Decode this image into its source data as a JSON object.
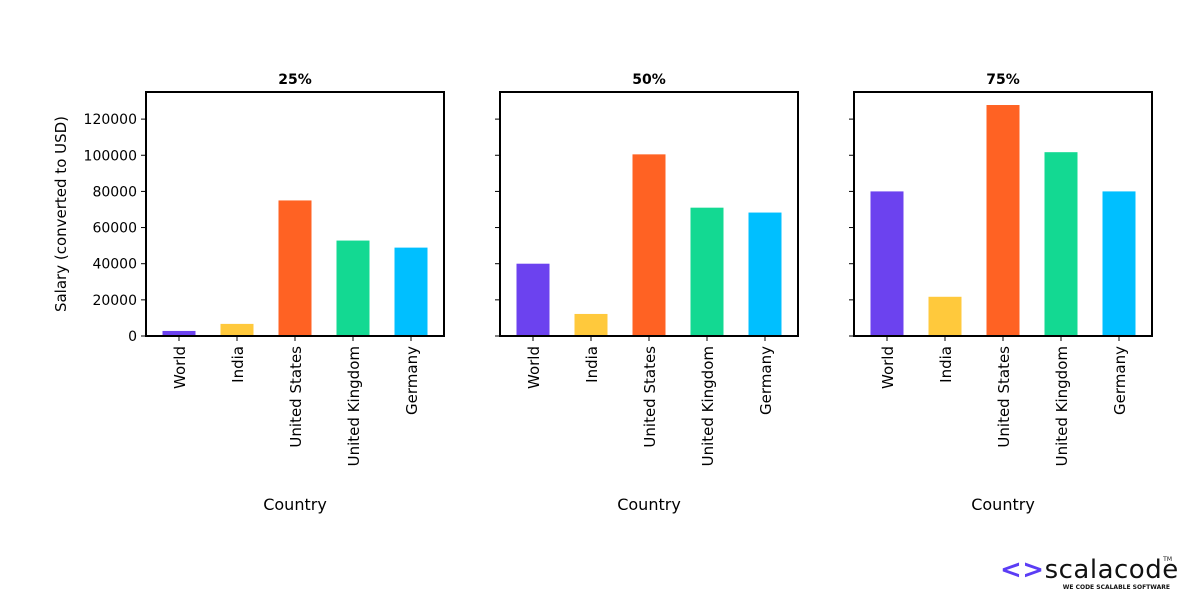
{
  "chart_data": [
    {
      "type": "bar",
      "title": "25%",
      "xlabel": "Country",
      "ylabel": "Salary (converted to USD)",
      "categories": [
        "World",
        "India",
        "United States",
        "United Kingdom",
        "Germany"
      ],
      "values": [
        2800,
        6700,
        75000,
        52800,
        48900
      ],
      "ylim": [
        0,
        135000
      ],
      "yticks": [
        0,
        20000,
        40000,
        60000,
        80000,
        100000,
        120000
      ]
    },
    {
      "type": "bar",
      "title": "50%",
      "xlabel": "Country",
      "ylabel": "",
      "categories": [
        "World",
        "India",
        "United States",
        "United Kingdom",
        "Germany"
      ],
      "values": [
        40000,
        12200,
        100500,
        71000,
        68300
      ],
      "ylim": [
        0,
        135000
      ],
      "yticks": [
        0,
        20000,
        40000,
        60000,
        80000,
        100000,
        120000
      ]
    },
    {
      "type": "bar",
      "title": "75%",
      "xlabel": "Country",
      "ylabel": "",
      "categories": [
        "World",
        "India",
        "United States",
        "United Kingdom",
        "Germany"
      ],
      "values": [
        80000,
        21700,
        127800,
        101700,
        80000
      ],
      "ylim": [
        0,
        135000
      ],
      "yticks": [
        0,
        20000,
        40000,
        60000,
        80000,
        100000,
        120000
      ]
    }
  ],
  "colors": [
    "#6c42ef",
    "#ffc93c",
    "#ff6223",
    "#13d992",
    "#00bfff"
  ],
  "logo": {
    "arrows": "<>",
    "name": "scalacode",
    "tm": "TM",
    "tagline": "WE CODE SCALABLE SOFTWARE"
  }
}
